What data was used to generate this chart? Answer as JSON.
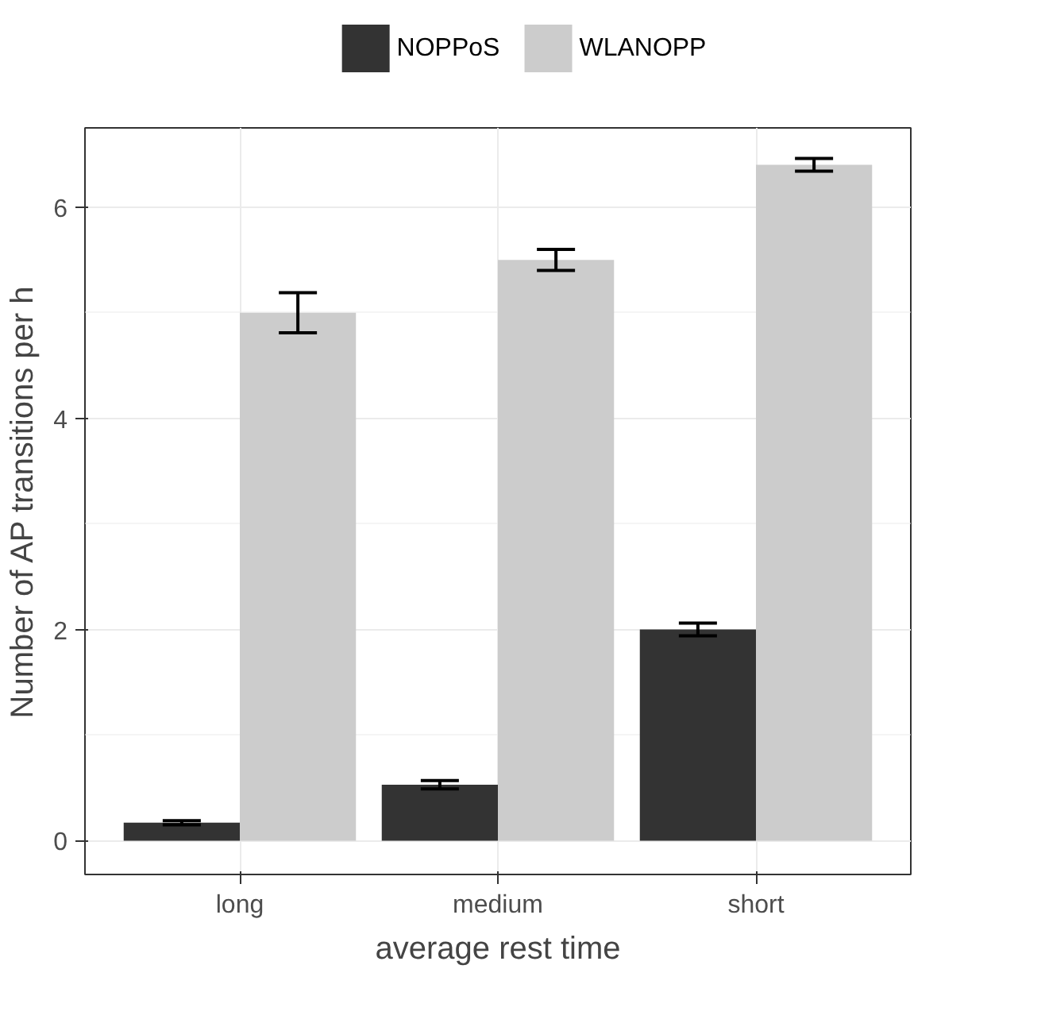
{
  "chart_data": {
    "type": "bar",
    "xlabel": "average rest time",
    "ylabel": "Number of AP transitions per h",
    "categories": [
      "long",
      "medium",
      "short"
    ],
    "series": [
      {
        "name": "NOPPoS",
        "color": "#333333",
        "values": [
          0.17,
          0.53,
          2.0
        ],
        "errors": [
          0.02,
          0.04,
          0.06
        ]
      },
      {
        "name": "WLANOPP",
        "color": "#cccccc",
        "values": [
          5.0,
          5.5,
          6.4
        ],
        "errors": [
          0.19,
          0.1,
          0.06
        ]
      }
    ],
    "ylim": [
      -0.32,
      6.75
    ],
    "yticks": [
      0,
      2,
      4,
      6
    ],
    "grid": true,
    "legend": "top"
  }
}
